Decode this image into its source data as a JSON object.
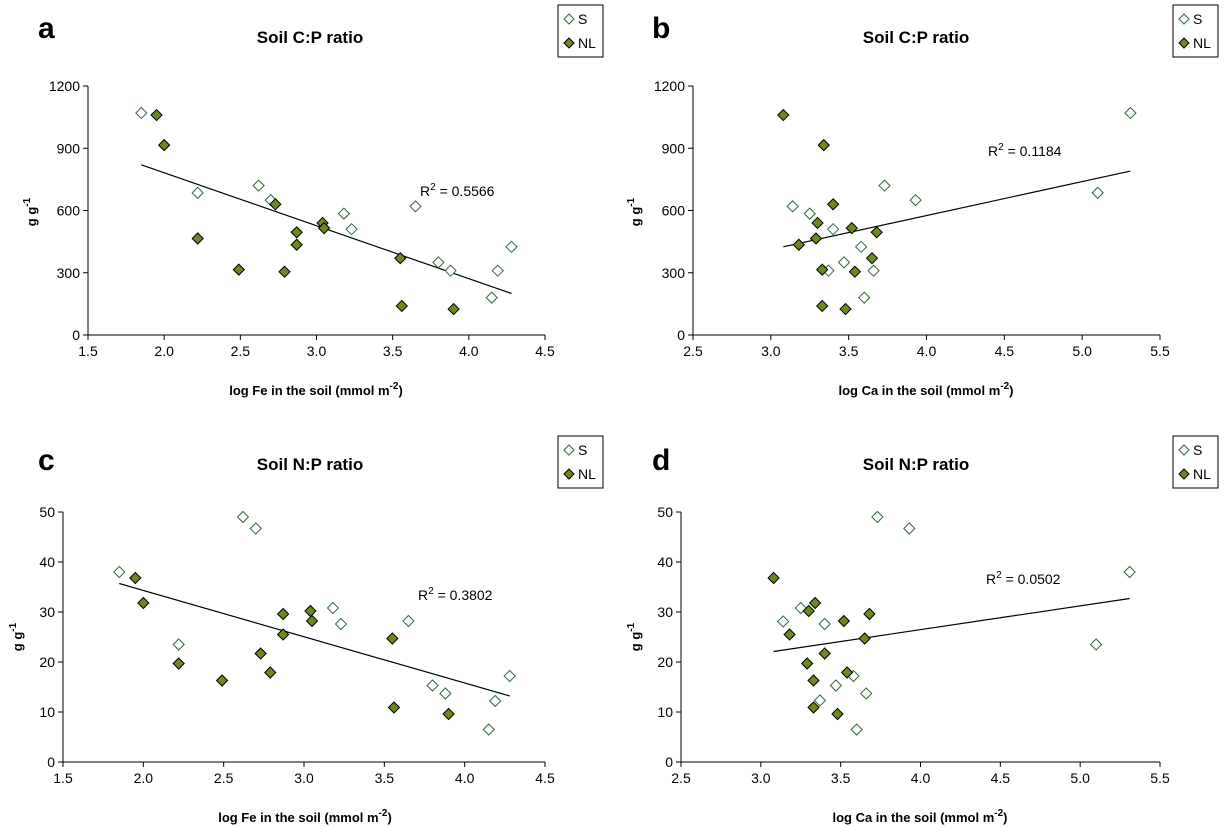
{
  "colors": {
    "nl_fill": "#6b8a1e",
    "s_fill": "#ffffff",
    "marker_stroke": "#000000",
    "s_stroke": "#2f6b3a"
  },
  "chart_data": [
    {
      "panel": "a",
      "type": "scatter",
      "title": "Soil C:P ratio",
      "xlabel": "log Fe in the soil (mmol m",
      "xlabel_sup": "-2",
      "xlabel_end": ")",
      "ylabel": "g g",
      "ylabel_sup": "-1",
      "xlim": [
        1.5,
        4.5
      ],
      "ylim": [
        0,
        1200
      ],
      "xticks": [
        "1.5",
        "2.0",
        "2.5",
        "3.0",
        "3.5",
        "4.0",
        "4.5"
      ],
      "yticks": [
        "0",
        "300",
        "600",
        "900",
        "1200"
      ],
      "legend": [
        "S",
        "NL"
      ],
      "r2_text": "R",
      "r2_sup": "2",
      "r2_value": " = 0.5566",
      "trendline": [
        [
          1.85,
          820
        ],
        [
          4.28,
          200
        ]
      ],
      "series": [
        {
          "name": "S",
          "points": [
            [
              1.85,
              1070
            ],
            [
              2.22,
              685
            ],
            [
              2.62,
              720
            ],
            [
              2.7,
              650
            ],
            [
              3.18,
              585
            ],
            [
              3.23,
              510
            ],
            [
              3.65,
              620
            ],
            [
              3.8,
              350
            ],
            [
              3.88,
              310
            ],
            [
              4.15,
              180
            ],
            [
              4.19,
              310
            ],
            [
              4.28,
              425
            ]
          ]
        },
        {
          "name": "NL",
          "points": [
            [
              1.95,
              1060
            ],
            [
              2.0,
              915
            ],
            [
              2.22,
              465
            ],
            [
              2.49,
              315
            ],
            [
              2.73,
              630
            ],
            [
              2.79,
              305
            ],
            [
              2.87,
              495
            ],
            [
              2.87,
              435
            ],
            [
              3.04,
              540
            ],
            [
              3.05,
              515
            ],
            [
              3.55,
              370
            ],
            [
              3.56,
              140
            ],
            [
              3.9,
              125
            ]
          ]
        }
      ]
    },
    {
      "panel": "b",
      "type": "scatter",
      "title": "Soil C:P ratio",
      "xlabel": "log Ca in the soil (mmol m",
      "xlabel_sup": "-2",
      "xlabel_end": ")",
      "ylabel": "g g",
      "ylabel_sup": "-1",
      "xlim": [
        2.5,
        5.5
      ],
      "ylim": [
        0,
        1200
      ],
      "xticks": [
        "2.5",
        "3.0",
        "3.5",
        "4.0",
        "4.5",
        "5.0",
        "5.5"
      ],
      "yticks": [
        "0",
        "300",
        "600",
        "900",
        "1200"
      ],
      "legend": [
        "S",
        "NL"
      ],
      "r2_text": "R",
      "r2_sup": "2",
      "r2_value": " = 0.1184",
      "trendline": [
        [
          3.08,
          425
        ],
        [
          5.31,
          790
        ]
      ],
      "series": [
        {
          "name": "S",
          "points": [
            [
              3.14,
              620
            ],
            [
              3.25,
              585
            ],
            [
              3.37,
              310
            ],
            [
              3.4,
              510
            ],
            [
              3.47,
              350
            ],
            [
              3.58,
              425
            ],
            [
              3.6,
              180
            ],
            [
              3.66,
              310
            ],
            [
              3.73,
              720
            ],
            [
              3.93,
              650
            ],
            [
              5.1,
              685
            ],
            [
              5.31,
              1070
            ]
          ]
        },
        {
          "name": "NL",
          "points": [
            [
              3.08,
              1060
            ],
            [
              3.18,
              435
            ],
            [
              3.29,
              465
            ],
            [
              3.3,
              540
            ],
            [
              3.33,
              315
            ],
            [
              3.33,
              140
            ],
            [
              3.34,
              915
            ],
            [
              3.4,
              630
            ],
            [
              3.48,
              125
            ],
            [
              3.52,
              515
            ],
            [
              3.54,
              305
            ],
            [
              3.65,
              370
            ],
            [
              3.68,
              495
            ]
          ]
        }
      ]
    },
    {
      "panel": "c",
      "type": "scatter",
      "title": "Soil N:P ratio",
      "xlabel": "log Fe in the soil (mmol m",
      "xlabel_sup": "-2",
      "xlabel_end": ")",
      "ylabel": "g g",
      "ylabel_sup": "-1",
      "xlim": [
        1.5,
        4.5
      ],
      "ylim": [
        0,
        50
      ],
      "xticks": [
        "1.5",
        "2.0",
        "2.5",
        "3.0",
        "3.5",
        "4.0",
        "4.5"
      ],
      "yticks": [
        "0",
        "10",
        "20",
        "30",
        "40",
        "50"
      ],
      "legend": [
        "S",
        "NL"
      ],
      "r2_text": "R",
      "r2_sup": "2",
      "r2_value": " = 0.3802",
      "trendline": [
        [
          1.85,
          35.7
        ],
        [
          4.28,
          13.2
        ]
      ],
      "series": [
        {
          "name": "S",
          "points": [
            [
              1.85,
              38
            ],
            [
              2.22,
              23.5
            ],
            [
              2.62,
              49
            ],
            [
              2.7,
              46.7
            ],
            [
              3.18,
              30.8
            ],
            [
              3.23,
              27.6
            ],
            [
              3.65,
              28.2
            ],
            [
              3.8,
              15.3
            ],
            [
              3.88,
              13.7
            ],
            [
              4.15,
              6.5
            ],
            [
              4.19,
              12.2
            ],
            [
              4.28,
              17.2
            ]
          ]
        },
        {
          "name": "NL",
          "points": [
            [
              1.95,
              36.8
            ],
            [
              2.0,
              31.8
            ],
            [
              2.22,
              19.7
            ],
            [
              2.49,
              16.3
            ],
            [
              2.73,
              21.7
            ],
            [
              2.79,
              17.9
            ],
            [
              2.87,
              29.6
            ],
            [
              2.87,
              25.5
            ],
            [
              3.04,
              30.2
            ],
            [
              3.05,
              28.2
            ],
            [
              3.55,
              24.7
            ],
            [
              3.56,
              10.9
            ],
            [
              3.9,
              9.6
            ]
          ]
        }
      ]
    },
    {
      "panel": "d",
      "type": "scatter",
      "title": "Soil N:P ratio",
      "xlabel": "log Ca in the soil (mmol m",
      "xlabel_sup": "-2",
      "xlabel_end": ")",
      "ylabel": "g g",
      "ylabel_sup": "-1",
      "xlim": [
        2.5,
        5.5
      ],
      "ylim": [
        0,
        50
      ],
      "xticks": [
        "2.5",
        "3.0",
        "3.5",
        "4.0",
        "4.5",
        "5.0",
        "5.5"
      ],
      "yticks": [
        "0",
        "10",
        "20",
        "30",
        "40",
        "50"
      ],
      "legend": [
        "S",
        "NL"
      ],
      "r2_text": "R",
      "r2_sup": "2",
      "r2_value": " = 0.0502",
      "trendline": [
        [
          3.08,
          22.1
        ],
        [
          5.31,
          32.7
        ]
      ],
      "series": [
        {
          "name": "S",
          "points": [
            [
              3.14,
              28.1
            ],
            [
              3.25,
              30.8
            ],
            [
              3.37,
              12.3
            ],
            [
              3.4,
              27.6
            ],
            [
              3.47,
              15.3
            ],
            [
              3.58,
              17.2
            ],
            [
              3.6,
              6.5
            ],
            [
              3.66,
              13.7
            ],
            [
              3.73,
              49
            ],
            [
              3.93,
              46.7
            ],
            [
              5.1,
              23.5
            ],
            [
              5.31,
              38
            ]
          ]
        },
        {
          "name": "NL",
          "points": [
            [
              3.08,
              36.8
            ],
            [
              3.18,
              25.5
            ],
            [
              3.29,
              19.7
            ],
            [
              3.3,
              30.2
            ],
            [
              3.33,
              16.3
            ],
            [
              3.33,
              10.9
            ],
            [
              3.34,
              31.8
            ],
            [
              3.4,
              21.7
            ],
            [
              3.48,
              9.6
            ],
            [
              3.52,
              28.2
            ],
            [
              3.54,
              17.9
            ],
            [
              3.65,
              24.7
            ],
            [
              3.68,
              29.6
            ]
          ]
        }
      ]
    }
  ]
}
